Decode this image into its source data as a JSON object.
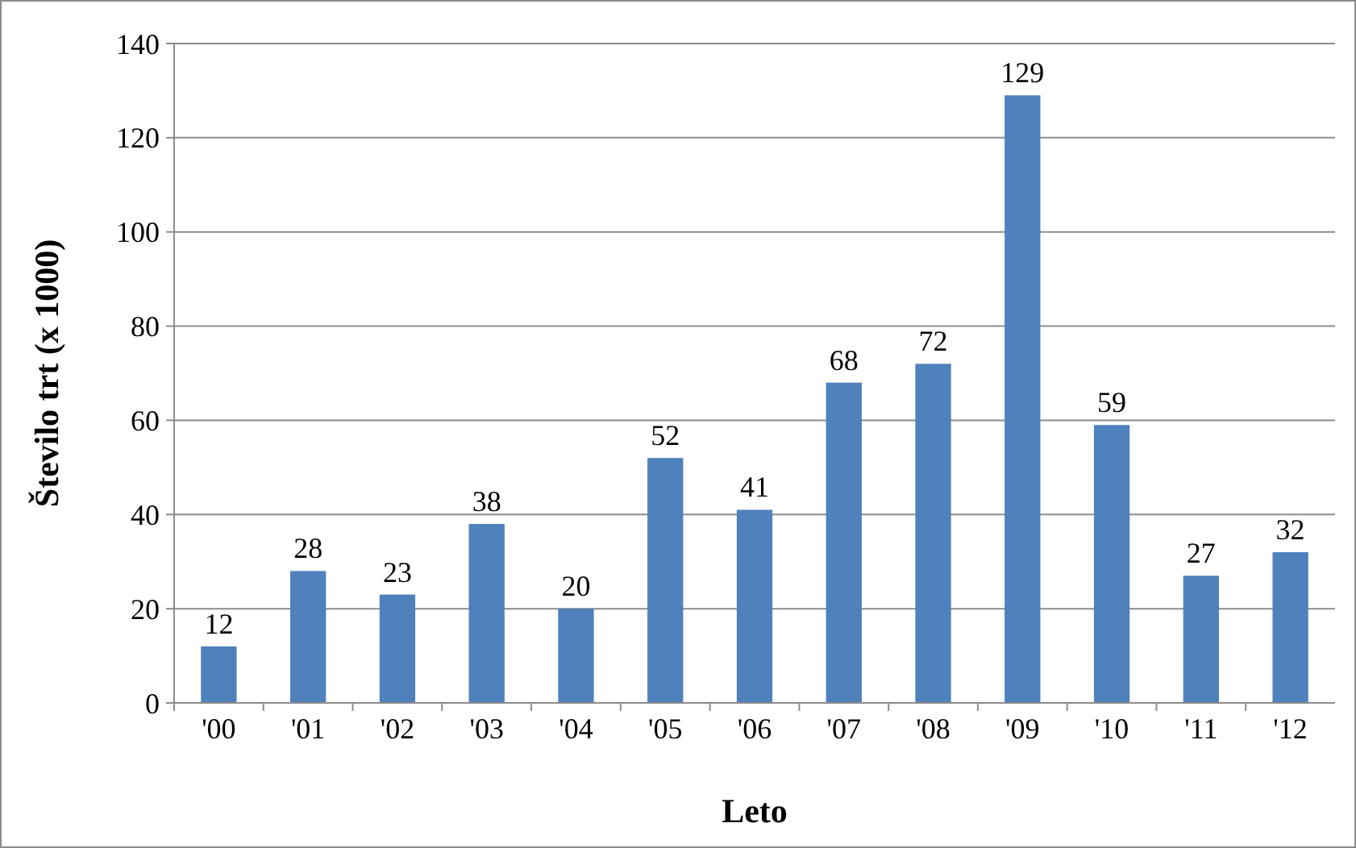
{
  "chart_data": {
    "type": "bar",
    "xlabel": "Leto",
    "ylabel": "Število trt (x 1000)",
    "categories": [
      "'00",
      "'01",
      "'02",
      "'03",
      "'04",
      "'05",
      "'06",
      "'07",
      "'08",
      "'09",
      "'10",
      "'11",
      "'12"
    ],
    "values": [
      12,
      28,
      23,
      38,
      20,
      52,
      41,
      68,
      72,
      129,
      59,
      27,
      32
    ],
    "color": "#4f81bd",
    "data_labels": true,
    "grid": "y",
    "ylim": [
      0,
      140
    ],
    "yticks": [
      0,
      20,
      40,
      60,
      80,
      100,
      120,
      140
    ]
  }
}
